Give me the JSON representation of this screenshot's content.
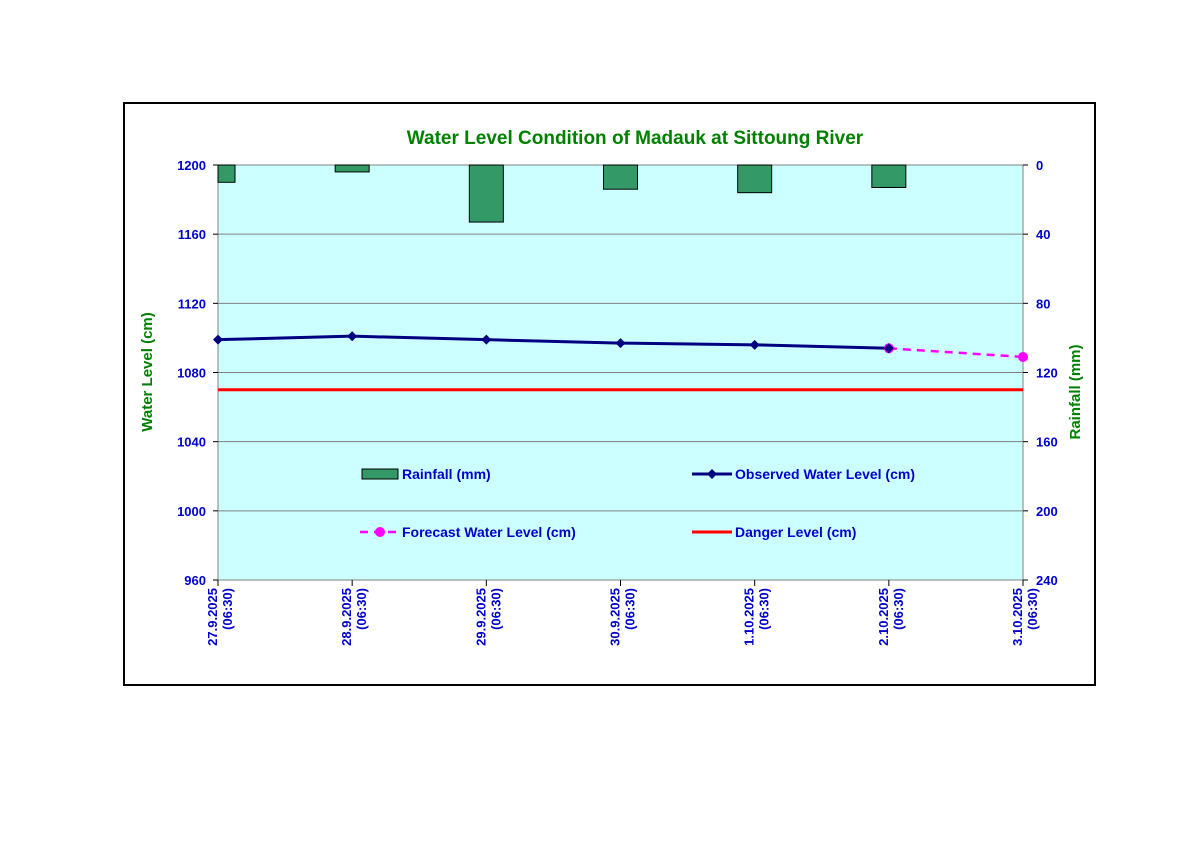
{
  "chart_data": {
    "type": "bar+line",
    "title": "Water Level Condition of Madauk at Sittoung River",
    "ylabel": "Water Level (cm)",
    "y2label": "Rainfall (mm)",
    "ylim": [
      960,
      1200
    ],
    "y2lim": [
      0,
      240
    ],
    "y2_inverted": true,
    "yticks": [
      "960",
      "1000",
      "1040",
      "1080",
      "1120",
      "1160",
      "1200"
    ],
    "y2ticks": [
      "0",
      "40",
      "80",
      "120",
      "160",
      "200",
      "240"
    ],
    "categories": [
      [
        "27.9.2025",
        "(06:30)"
      ],
      [
        "28.9.2025",
        "(06:30)"
      ],
      [
        "29.9.2025",
        "(06:30)"
      ],
      [
        "30.9.2025",
        "(06:30)"
      ],
      [
        "1.10.2025",
        "(06:30)"
      ],
      [
        "2.10.2025",
        "(06:30)"
      ],
      [
        "3.10.2025",
        "(06:30)"
      ]
    ],
    "series": [
      {
        "name": "Rainfall (mm)",
        "kind": "bar",
        "axis": "right",
        "color": "#339966",
        "values": [
          10,
          4,
          33,
          14,
          16,
          13,
          null
        ]
      },
      {
        "name": "Observed Water Level (cm)",
        "kind": "line",
        "axis": "left",
        "color": "#000080",
        "marker": "diamond",
        "values": [
          1099,
          1101,
          1099,
          1097,
          1096,
          1094,
          null
        ]
      },
      {
        "name": "Forecast Water Level (cm)",
        "kind": "line",
        "axis": "left",
        "color": "#FF00FF",
        "marker": "circle",
        "dashed": true,
        "values": [
          null,
          null,
          null,
          null,
          null,
          1094,
          1089
        ]
      },
      {
        "name": "Danger Level (cm)",
        "kind": "line",
        "axis": "left",
        "color": "#FF0000",
        "values": [
          1070,
          1070,
          1070,
          1070,
          1070,
          1070,
          1070
        ]
      }
    ],
    "plot_background": "#CCFFFF",
    "grid": true,
    "legend_position": "inside-bottom"
  }
}
